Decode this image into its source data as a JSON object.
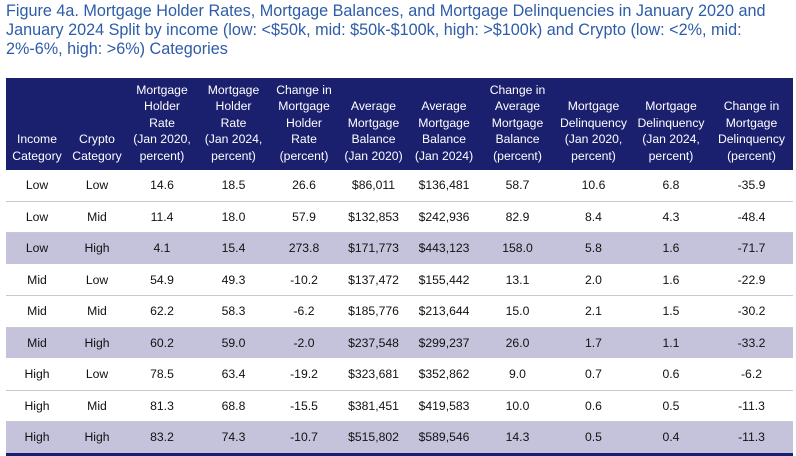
{
  "title_lines": [
    "Figure 4a. Mortgage Holder Rates, Mortgage Balances, and Mortgage Delinquencies in January 2020 and",
    "January 2024 Split by income (low: <$50k, mid: $50k-$100k, high: >$100k) and Crypto (low: <2%, mid:",
    "2%-6%, high: >6%) Categories"
  ],
  "columns": [
    [
      "Income",
      "Category"
    ],
    [
      "Crypto",
      "Category"
    ],
    [
      "Mortgage",
      "Holder",
      "Rate",
      "(Jan 2020,",
      "percent)"
    ],
    [
      "Mortgage",
      "Holder",
      "Rate",
      "(Jan 2024,",
      "percent)"
    ],
    [
      "Change in",
      "Mortgage",
      "Holder",
      "Rate",
      "(percent)"
    ],
    [
      "Average",
      "Mortgage",
      "Balance",
      "(Jan 2020)"
    ],
    [
      "Average",
      "Mortgage",
      "Balance",
      "(Jan 2024)"
    ],
    [
      "Change in",
      "Average",
      "Mortgage",
      "Balance",
      "(percent)"
    ],
    [
      "Mortgage",
      "Delinquency",
      "(Jan 2020,",
      "percent)"
    ],
    [
      "Mortgage",
      "Delinquency",
      "(Jan 2024,",
      "percent)"
    ],
    [
      "Change in",
      "Mortgage",
      "Delinquency",
      "(percent)"
    ]
  ],
  "rows": [
    [
      "Low",
      "Low",
      "14.6",
      "18.5",
      "26.6",
      "$86,011",
      "$136,481",
      "58.7",
      "10.6",
      "6.8",
      "-35.9"
    ],
    [
      "Low",
      "Mid",
      "11.4",
      "18.0",
      "57.9",
      "$132,853",
      "$242,936",
      "82.9",
      "8.4",
      "4.3",
      "-48.4"
    ],
    [
      "Low",
      "High",
      "4.1",
      "15.4",
      "273.8",
      "$171,773",
      "$443,123",
      "158.0",
      "5.8",
      "1.6",
      "-71.7"
    ],
    [
      "Mid",
      "Low",
      "54.9",
      "49.3",
      "-10.2",
      "$137,472",
      "$155,442",
      "13.1",
      "2.0",
      "1.6",
      "-22.9"
    ],
    [
      "Mid",
      "Mid",
      "62.2",
      "58.3",
      "-6.2",
      "$185,776",
      "$213,644",
      "15.0",
      "2.1",
      "1.5",
      "-30.2"
    ],
    [
      "Mid",
      "High",
      "60.2",
      "59.0",
      "-2.0",
      "$237,548",
      "$299,237",
      "26.0",
      "1.7",
      "1.1",
      "-33.2"
    ],
    [
      "High",
      "Low",
      "78.5",
      "63.4",
      "-19.2",
      "$323,681",
      "$352,862",
      "9.0",
      "0.7",
      "0.6",
      "-6.2"
    ],
    [
      "High",
      "Mid",
      "81.3",
      "68.8",
      "-15.5",
      "$381,451",
      "$419,583",
      "10.0",
      "0.6",
      "0.5",
      "-11.3"
    ],
    [
      "High",
      "High",
      "83.2",
      "74.3",
      "-10.7",
      "$515,802",
      "$589,546",
      "14.3",
      "0.5",
      "0.4",
      "-11.3"
    ]
  ],
  "colors": {
    "title": "#2d5ca8",
    "header_bg": "#1a1f6e",
    "shaded_row": "#c5c3dc"
  }
}
